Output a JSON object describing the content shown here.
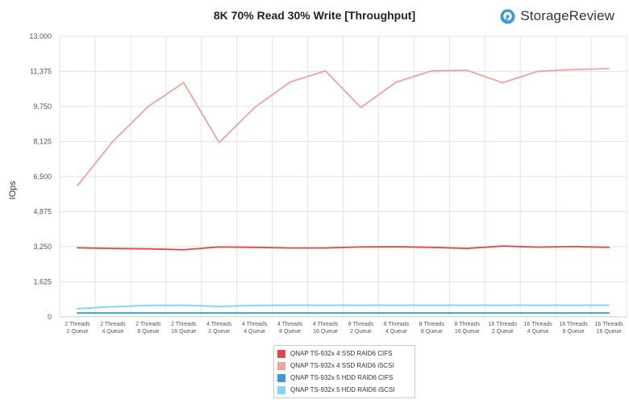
{
  "brand": {
    "name": "StorageReview",
    "logo_icon": "storagereview-logo-icon",
    "accent": "#3a9ad9"
  },
  "chart_data": {
    "type": "line",
    "title": "8K 70% Read 30% Write [Throughput]",
    "ylabel": "IOps",
    "xlabel": "",
    "ylim": [
      0,
      13000
    ],
    "yticks": [
      "0",
      "1,625",
      "3,250",
      "4,875",
      "6,500",
      "8,125",
      "9,750",
      "11,375",
      "13,000"
    ],
    "ytick_values": [
      0,
      1625,
      3250,
      4875,
      6500,
      8125,
      9750,
      11375,
      13000
    ],
    "grid": true,
    "legend_position": "bottom-center",
    "categories": [
      [
        "2 Threads",
        "2 Queue"
      ],
      [
        "2 Threads",
        "4 Queue"
      ],
      [
        "2 Threads",
        "8 Queue"
      ],
      [
        "2 Threads",
        "16 Queue"
      ],
      [
        "4 Threads",
        "2 Queue"
      ],
      [
        "4 Threads",
        "4 Queue"
      ],
      [
        "4 Threads",
        "8 Queue"
      ],
      [
        "4 Threads",
        "16 Queue"
      ],
      [
        "8 Threads",
        "2 Queue"
      ],
      [
        "8 Threads",
        "4 Queue"
      ],
      [
        "8 Threads",
        "8 Queue"
      ],
      [
        "8 Threads",
        "16 Queue"
      ],
      [
        "16 Threads",
        "2 Queue"
      ],
      [
        "16 Threads",
        "4 Queue"
      ],
      [
        "16 Threads",
        "8 Queue"
      ],
      [
        "16 Threads",
        "16 Queue"
      ]
    ],
    "series": [
      {
        "name": "QNAP TS-932x 4 SSD RAID6 CIFS",
        "color": "#e04848",
        "values": [
          3200,
          3170,
          3150,
          3110,
          3240,
          3220,
          3190,
          3190,
          3240,
          3250,
          3220,
          3170,
          3280,
          3230,
          3260,
          3220
        ]
      },
      {
        "name": "QNAP TS-932x 4 SSD RAID6 iSCSI",
        "color": "#f4a0a0",
        "values": [
          6080,
          8130,
          9750,
          10850,
          8080,
          9700,
          10880,
          11400,
          9700,
          10880,
          11400,
          11420,
          10850,
          11380,
          11460,
          11500
        ]
      },
      {
        "name": "QNAP TS-932x 5 HDD RAID6 CIFS",
        "color": "#3a9ad9",
        "values": [
          180,
          180,
          180,
          180,
          180,
          180,
          180,
          180,
          180,
          180,
          180,
          180,
          180,
          180,
          180,
          180
        ]
      },
      {
        "name": "QNAP TS-932x 5 HDD RAID6 iSCSI",
        "color": "#7fd4f8",
        "values": [
          380,
          470,
          530,
          540,
          480,
          530,
          540,
          540,
          540,
          540,
          540,
          540,
          540,
          540,
          540,
          540
        ]
      }
    ]
  }
}
